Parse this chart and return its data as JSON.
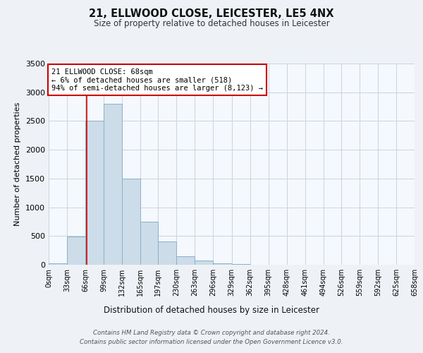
{
  "title": "21, ELLWOOD CLOSE, LEICESTER, LE5 4NX",
  "subtitle": "Size of property relative to detached houses in Leicester",
  "xlabel": "Distribution of detached houses by size in Leicester",
  "ylabel": "Number of detached properties",
  "bin_edges": [
    0,
    33,
    66,
    99,
    132,
    165,
    197,
    230,
    263,
    296,
    329,
    362,
    395,
    428,
    461,
    494,
    526,
    559,
    592,
    625,
    658
  ],
  "bin_counts": [
    25,
    490,
    2500,
    2800,
    1500,
    750,
    400,
    150,
    70,
    30,
    10,
    5,
    2,
    0,
    0,
    0,
    0,
    0,
    0,
    0
  ],
  "bar_color": "#ccdce8",
  "bar_edgecolor": "#8ab0cc",
  "vline_x": 68,
  "vline_color": "#cc0000",
  "annotation_title": "21 ELLWOOD CLOSE: 68sqm",
  "annotation_line1": "← 6% of detached houses are smaller (518)",
  "annotation_line2": "94% of semi-detached houses are larger (8,123) →",
  "annotation_box_edgecolor": "#cc0000",
  "annotation_box_facecolor": "#ffffff",
  "ylim": [
    0,
    3500
  ],
  "yticks": [
    0,
    500,
    1000,
    1500,
    2000,
    2500,
    3000,
    3500
  ],
  "footer_line1": "Contains HM Land Registry data © Crown copyright and database right 2024.",
  "footer_line2": "Contains public sector information licensed under the Open Government Licence v3.0.",
  "bg_color": "#eef2f7",
  "plot_bg_color": "#f5f8fc",
  "grid_color": "#c8d4de"
}
